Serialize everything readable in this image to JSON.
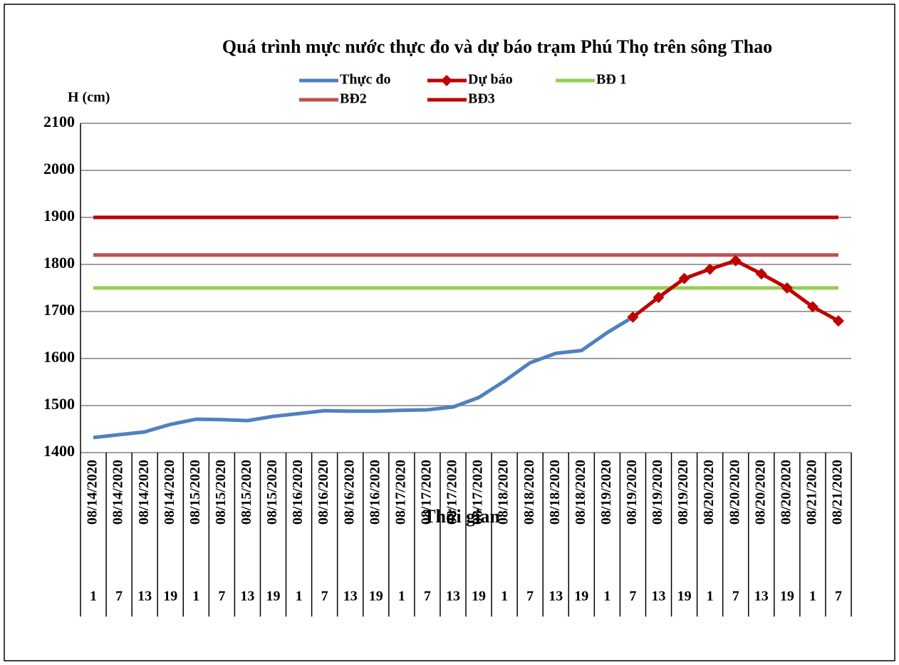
{
  "chart_data": {
    "type": "line",
    "title": "Quá trình mực nước thực đo và dự báo trạm Phú Thọ trên sông Thao",
    "y_label": "H (cm)",
    "x_label": "Thời gian",
    "categories": [
      [
        "08/14/2020",
        "1"
      ],
      [
        "08/14/2020",
        "7"
      ],
      [
        "08/14/2020",
        "13"
      ],
      [
        "08/14/2020",
        "19"
      ],
      [
        "08/15/2020",
        "1"
      ],
      [
        "08/15/2020",
        "7"
      ],
      [
        "08/15/2020",
        "13"
      ],
      [
        "08/15/2020",
        "19"
      ],
      [
        "08/16/2020",
        "1"
      ],
      [
        "08/16/2020",
        "7"
      ],
      [
        "08/16/2020",
        "13"
      ],
      [
        "08/16/2020",
        "19"
      ],
      [
        "08/17/2020",
        "1"
      ],
      [
        "08/17/2020",
        "7"
      ],
      [
        "08/17/2020",
        "13"
      ],
      [
        "08/17/2020",
        "19"
      ],
      [
        "08/18/2020",
        "1"
      ],
      [
        "08/18/2020",
        "7"
      ],
      [
        "08/18/2020",
        "13"
      ],
      [
        "08/18/2020",
        "19"
      ],
      [
        "08/19/2020",
        "1"
      ],
      [
        "08/19/2020",
        "7"
      ],
      [
        "08/19/2020",
        "13"
      ],
      [
        "08/19/2020",
        "19"
      ],
      [
        "08/20/2020",
        "1"
      ],
      [
        "08/20/2020",
        "7"
      ],
      [
        "08/20/2020",
        "13"
      ],
      [
        "08/20/2020",
        "19"
      ],
      [
        "08/21/2020",
        "1"
      ],
      [
        "08/21/2020",
        "7"
      ]
    ],
    "series": [
      {
        "name": "Thực đo",
        "color": "#4f81bd",
        "marker": false,
        "values": [
          1432,
          1438,
          1444,
          1460,
          1471,
          1470,
          1468,
          1477,
          1483,
          1489,
          1488,
          1488,
          1490,
          1491,
          1497,
          1517,
          1552,
          1591,
          1611,
          1617,
          1655,
          1688,
          null,
          null,
          null,
          null,
          null,
          null,
          null,
          null
        ]
      },
      {
        "name": "Dự báo",
        "color": "#c00000",
        "marker": true,
        "values": [
          null,
          null,
          null,
          null,
          null,
          null,
          null,
          null,
          null,
          null,
          null,
          null,
          null,
          null,
          null,
          null,
          null,
          null,
          null,
          null,
          null,
          1688,
          1730,
          1770,
          1790,
          1808,
          1780,
          1750,
          1710,
          1680
        ]
      },
      {
        "name": "BĐ 1",
        "color": "#92d050",
        "marker": false,
        "values": [
          1750,
          1750,
          1750,
          1750,
          1750,
          1750,
          1750,
          1750,
          1750,
          1750,
          1750,
          1750,
          1750,
          1750,
          1750,
          1750,
          1750,
          1750,
          1750,
          1750,
          1750,
          1750,
          1750,
          1750,
          1750,
          1750,
          1750,
          1750,
          1750,
          1750
        ]
      },
      {
        "name": "BĐ2",
        "color": "#c0504d",
        "marker": false,
        "values": [
          1820,
          1820,
          1820,
          1820,
          1820,
          1820,
          1820,
          1820,
          1820,
          1820,
          1820,
          1820,
          1820,
          1820,
          1820,
          1820,
          1820,
          1820,
          1820,
          1820,
          1820,
          1820,
          1820,
          1820,
          1820,
          1820,
          1820,
          1820,
          1820,
          1820
        ]
      },
      {
        "name": "BĐ3",
        "color": "#c00000",
        "marker": false,
        "values": [
          1900,
          1900,
          1900,
          1900,
          1900,
          1900,
          1900,
          1900,
          1900,
          1900,
          1900,
          1900,
          1900,
          1900,
          1900,
          1900,
          1900,
          1900,
          1900,
          1900,
          1900,
          1900,
          1900,
          1900,
          1900,
          1900,
          1900,
          1900,
          1900,
          1900
        ]
      }
    ],
    "ylim": [
      1400,
      2100
    ],
    "yticks": [
      1400,
      1500,
      1600,
      1700,
      1800,
      1900,
      2000,
      2100
    ],
    "grid": true
  }
}
